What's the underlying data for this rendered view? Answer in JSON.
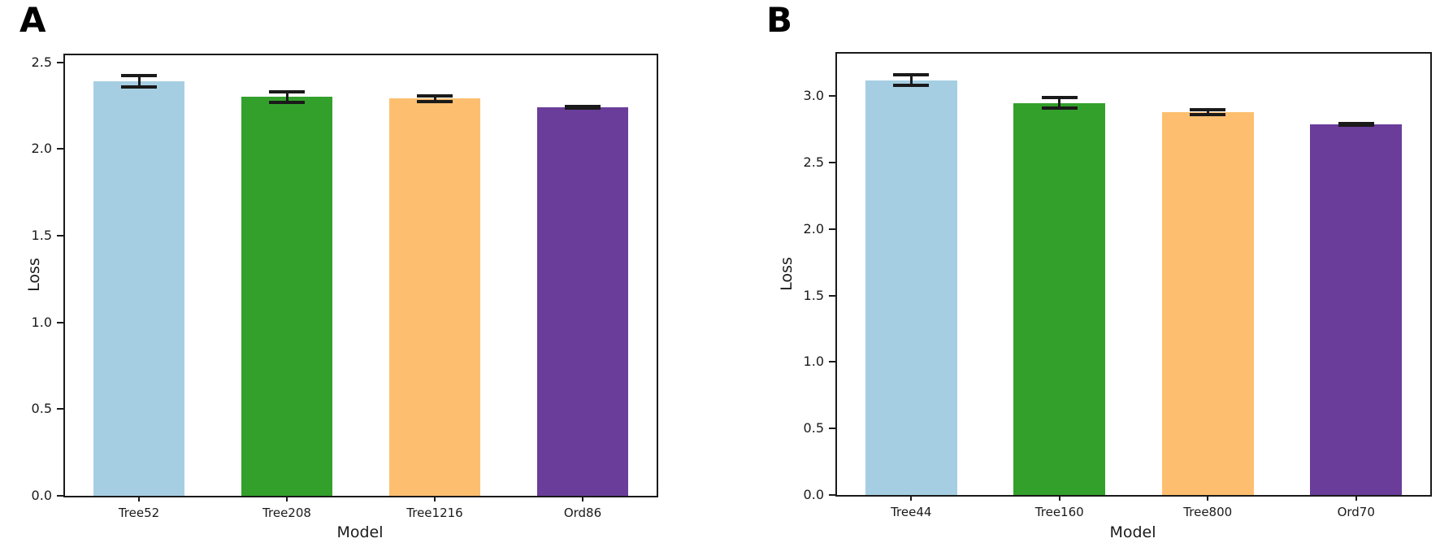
{
  "figure": {
    "background": "#ffffff",
    "axis_color": "#1a1a1a",
    "error_bar_color": "#1a1a1a"
  },
  "chart_data": [
    {
      "type": "bar",
      "panel_label": "A",
      "title": "",
      "xlabel": "Model",
      "ylabel": "Loss",
      "categories": [
        "Tree52",
        "Tree208",
        "Tree1216",
        "Ord86"
      ],
      "values": [
        2.39,
        2.3,
        2.29,
        2.24
      ],
      "errors": [
        0.035,
        0.03,
        0.015,
        0.005
      ],
      "bar_colors": [
        "#a6cee3",
        "#33a02c",
        "#fdbf6f",
        "#6a3d9a"
      ],
      "yticks": [
        0.0,
        0.5,
        1.0,
        1.5,
        2.0,
        2.5
      ],
      "ylim": [
        0,
        2.54
      ],
      "grid": false,
      "legend": "none"
    },
    {
      "type": "bar",
      "panel_label": "B",
      "title": "",
      "xlabel": "Model",
      "ylabel": "Loss",
      "categories": [
        "Tree44",
        "Tree160",
        "Tree800",
        "Ord70"
      ],
      "values": [
        3.12,
        2.95,
        2.88,
        2.79
      ],
      "errors": [
        0.04,
        0.04,
        0.02,
        0.005
      ],
      "bar_colors": [
        "#a6cee3",
        "#33a02c",
        "#fdbf6f",
        "#6a3d9a"
      ],
      "yticks": [
        0.0,
        0.5,
        1.0,
        1.5,
        2.0,
        2.5,
        3.0
      ],
      "ylim": [
        0,
        3.32
      ],
      "grid": false,
      "legend": "none"
    }
  ]
}
